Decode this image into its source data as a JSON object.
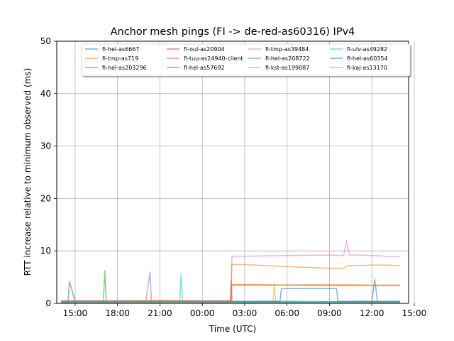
{
  "chart_data": {
    "type": "line",
    "title": "Anchor mesh pings (FI -> de-red-as60316) IPv4",
    "xlabel": "Time (UTC)",
    "ylabel": "RTT increase relative to minimum observed (ms)",
    "x_unit": "hours since 00:00 UTC (negative = previous day)",
    "xlim": [
      -10.3,
      14.6
    ],
    "ylim": [
      0,
      50
    ],
    "grid": true,
    "legend_location": "upper center",
    "legend_columns": 4,
    "x_ticks": [
      {
        "value": -9,
        "label": "15:00"
      },
      {
        "value": -6,
        "label": "18:00"
      },
      {
        "value": -3,
        "label": "21:00"
      },
      {
        "value": 0,
        "label": "00:00"
      },
      {
        "value": 3,
        "label": "03:00"
      },
      {
        "value": 6,
        "label": "06:00"
      },
      {
        "value": 9,
        "label": "09:00"
      },
      {
        "value": 12,
        "label": "12:00"
      },
      {
        "value": 15,
        "label": "15:00"
      }
    ],
    "y_ticks": [
      {
        "value": 0,
        "label": "0"
      },
      {
        "value": 10,
        "label": "10"
      },
      {
        "value": 20,
        "label": "20"
      },
      {
        "value": 30,
        "label": "30"
      },
      {
        "value": 40,
        "label": "40"
      },
      {
        "value": 50,
        "label": "50"
      }
    ],
    "series": [
      {
        "name": "fi-hel-as6667",
        "color": "#1f77b4",
        "x": [
          -10.0,
          -9.5,
          -9.4,
          -9.0,
          -6.0,
          -3.0,
          0.0,
          3.0,
          6.0,
          9.0,
          12.0,
          12.2,
          12.4,
          14.0
        ],
        "y": [
          0.3,
          0.3,
          4.2,
          0.4,
          0.3,
          0.4,
          0.3,
          0.3,
          0.4,
          0.3,
          0.3,
          4.6,
          0.3,
          0.3
        ]
      },
      {
        "name": "fi-tmp-as719",
        "color": "#ff7f0e",
        "x": [
          -10.0,
          -6.0,
          -3.0,
          0.0,
          2.0,
          2.1,
          3.0,
          6.0,
          9.0,
          10.0,
          10.3,
          11.0,
          12.0,
          13.0,
          14.0
        ],
        "y": [
          0.5,
          0.5,
          0.6,
          0.5,
          0.5,
          7.4,
          7.4,
          7.0,
          6.7,
          6.7,
          7.2,
          7.2,
          7.3,
          7.3,
          7.2
        ]
      },
      {
        "name": "fi-hel-as203296",
        "color": "#2ca02c",
        "x": [
          -10.0,
          -8.0,
          -7.0,
          -6.9,
          -6.8,
          -3.0,
          0.0,
          3.0,
          6.0,
          9.0,
          12.0,
          14.0
        ],
        "y": [
          0.2,
          0.3,
          0.3,
          6.2,
          0.3,
          0.2,
          0.3,
          0.2,
          0.3,
          0.2,
          0.3,
          0.2
        ]
      },
      {
        "name": "fi-oul-as20904",
        "color": "#d62728",
        "x": [
          -10.0,
          -6.0,
          -3.0,
          0.0,
          2.0,
          2.05,
          2.1,
          3.0,
          6.0,
          9.0,
          12.0,
          14.0
        ],
        "y": [
          0.2,
          0.2,
          0.3,
          0.2,
          0.2,
          4.5,
          0.3,
          0.3,
          0.2,
          0.3,
          0.2,
          0.2
        ]
      },
      {
        "name": "fi-tuu-as24940-client",
        "color": "#9467bd",
        "x": [
          -10.0,
          -6.0,
          -4.0,
          -3.7,
          -3.6,
          -3.0,
          0.0,
          3.0,
          6.0,
          9.0,
          12.0,
          14.0
        ],
        "y": [
          0.3,
          0.3,
          0.3,
          6.0,
          0.3,
          0.3,
          0.3,
          0.3,
          0.3,
          0.3,
          0.3,
          0.3
        ]
      },
      {
        "name": "fi-hel-as57692",
        "color": "#8c564b",
        "x": [
          -10.0,
          -6.0,
          -3.0,
          0.0,
          2.0,
          2.1,
          3.0,
          6.0,
          9.0,
          12.0,
          14.0
        ],
        "y": [
          0.4,
          0.4,
          0.4,
          0.4,
          0.4,
          3.5,
          3.5,
          3.5,
          3.4,
          3.4,
          3.4
        ]
      },
      {
        "name": "fi-tmp-as39484",
        "color": "#e377c2",
        "x": [
          -10.0,
          -6.0,
          -3.0,
          0.0,
          2.0,
          2.1,
          3.0,
          6.0,
          9.0,
          10.0,
          10.2,
          10.4,
          11.0,
          12.0,
          13.0,
          14.0
        ],
        "y": [
          0.5,
          0.5,
          0.5,
          0.5,
          0.5,
          9.0,
          9.0,
          9.1,
          9.2,
          9.1,
          12.0,
          9.2,
          9.2,
          9.1,
          9.0,
          8.9
        ]
      },
      {
        "name": "fi-hel-as208722",
        "color": "#7f7f7f",
        "x": [
          -10.0,
          -6.0,
          -3.0,
          0.0,
          3.0,
          6.0,
          9.0,
          12.0,
          14.0
        ],
        "y": [
          0.2,
          0.2,
          0.2,
          0.2,
          0.2,
          0.2,
          0.2,
          0.2,
          0.2
        ]
      },
      {
        "name": "fi-kst-as199087",
        "color": "#bcbd22",
        "x": [
          -10.0,
          -6.0,
          -3.0,
          0.0,
          3.0,
          5.0,
          5.1,
          5.2,
          6.0,
          9.0,
          12.0,
          14.0
        ],
        "y": [
          0.3,
          0.3,
          0.3,
          0.3,
          0.3,
          0.3,
          3.8,
          0.3,
          0.3,
          0.3,
          0.3,
          0.3
        ]
      },
      {
        "name": "fi-ulv-as49282",
        "color": "#17becf",
        "x": [
          -10.0,
          -6.0,
          -3.0,
          -1.6,
          -1.5,
          -1.4,
          0.0,
          3.0,
          6.0,
          9.0,
          12.0,
          14.0
        ],
        "y": [
          0.2,
          0.2,
          0.2,
          0.2,
          5.5,
          0.2,
          0.2,
          0.2,
          0.2,
          0.2,
          0.2,
          0.2
        ]
      },
      {
        "name": "fi-hel-as60354",
        "color": "#1f77b4",
        "x": [
          -10.0,
          -6.0,
          -3.0,
          0.0,
          3.0,
          5.5,
          5.6,
          8.0,
          9.0,
          9.5,
          9.6,
          12.0,
          14.0
        ],
        "y": [
          0.4,
          0.4,
          0.4,
          0.4,
          0.4,
          0.4,
          2.8,
          2.8,
          2.8,
          2.8,
          0.4,
          0.4,
          0.4
        ]
      },
      {
        "name": "fi-kaj-as13170",
        "color": "#ff7f0e",
        "x": [
          -10.0,
          -6.0,
          -3.0,
          0.0,
          2.0,
          2.1,
          3.0,
          6.0,
          9.0,
          12.0,
          14.0
        ],
        "y": [
          0.4,
          0.4,
          0.4,
          0.4,
          0.4,
          3.6,
          3.6,
          3.5,
          3.6,
          3.5,
          3.5
        ]
      }
    ]
  }
}
